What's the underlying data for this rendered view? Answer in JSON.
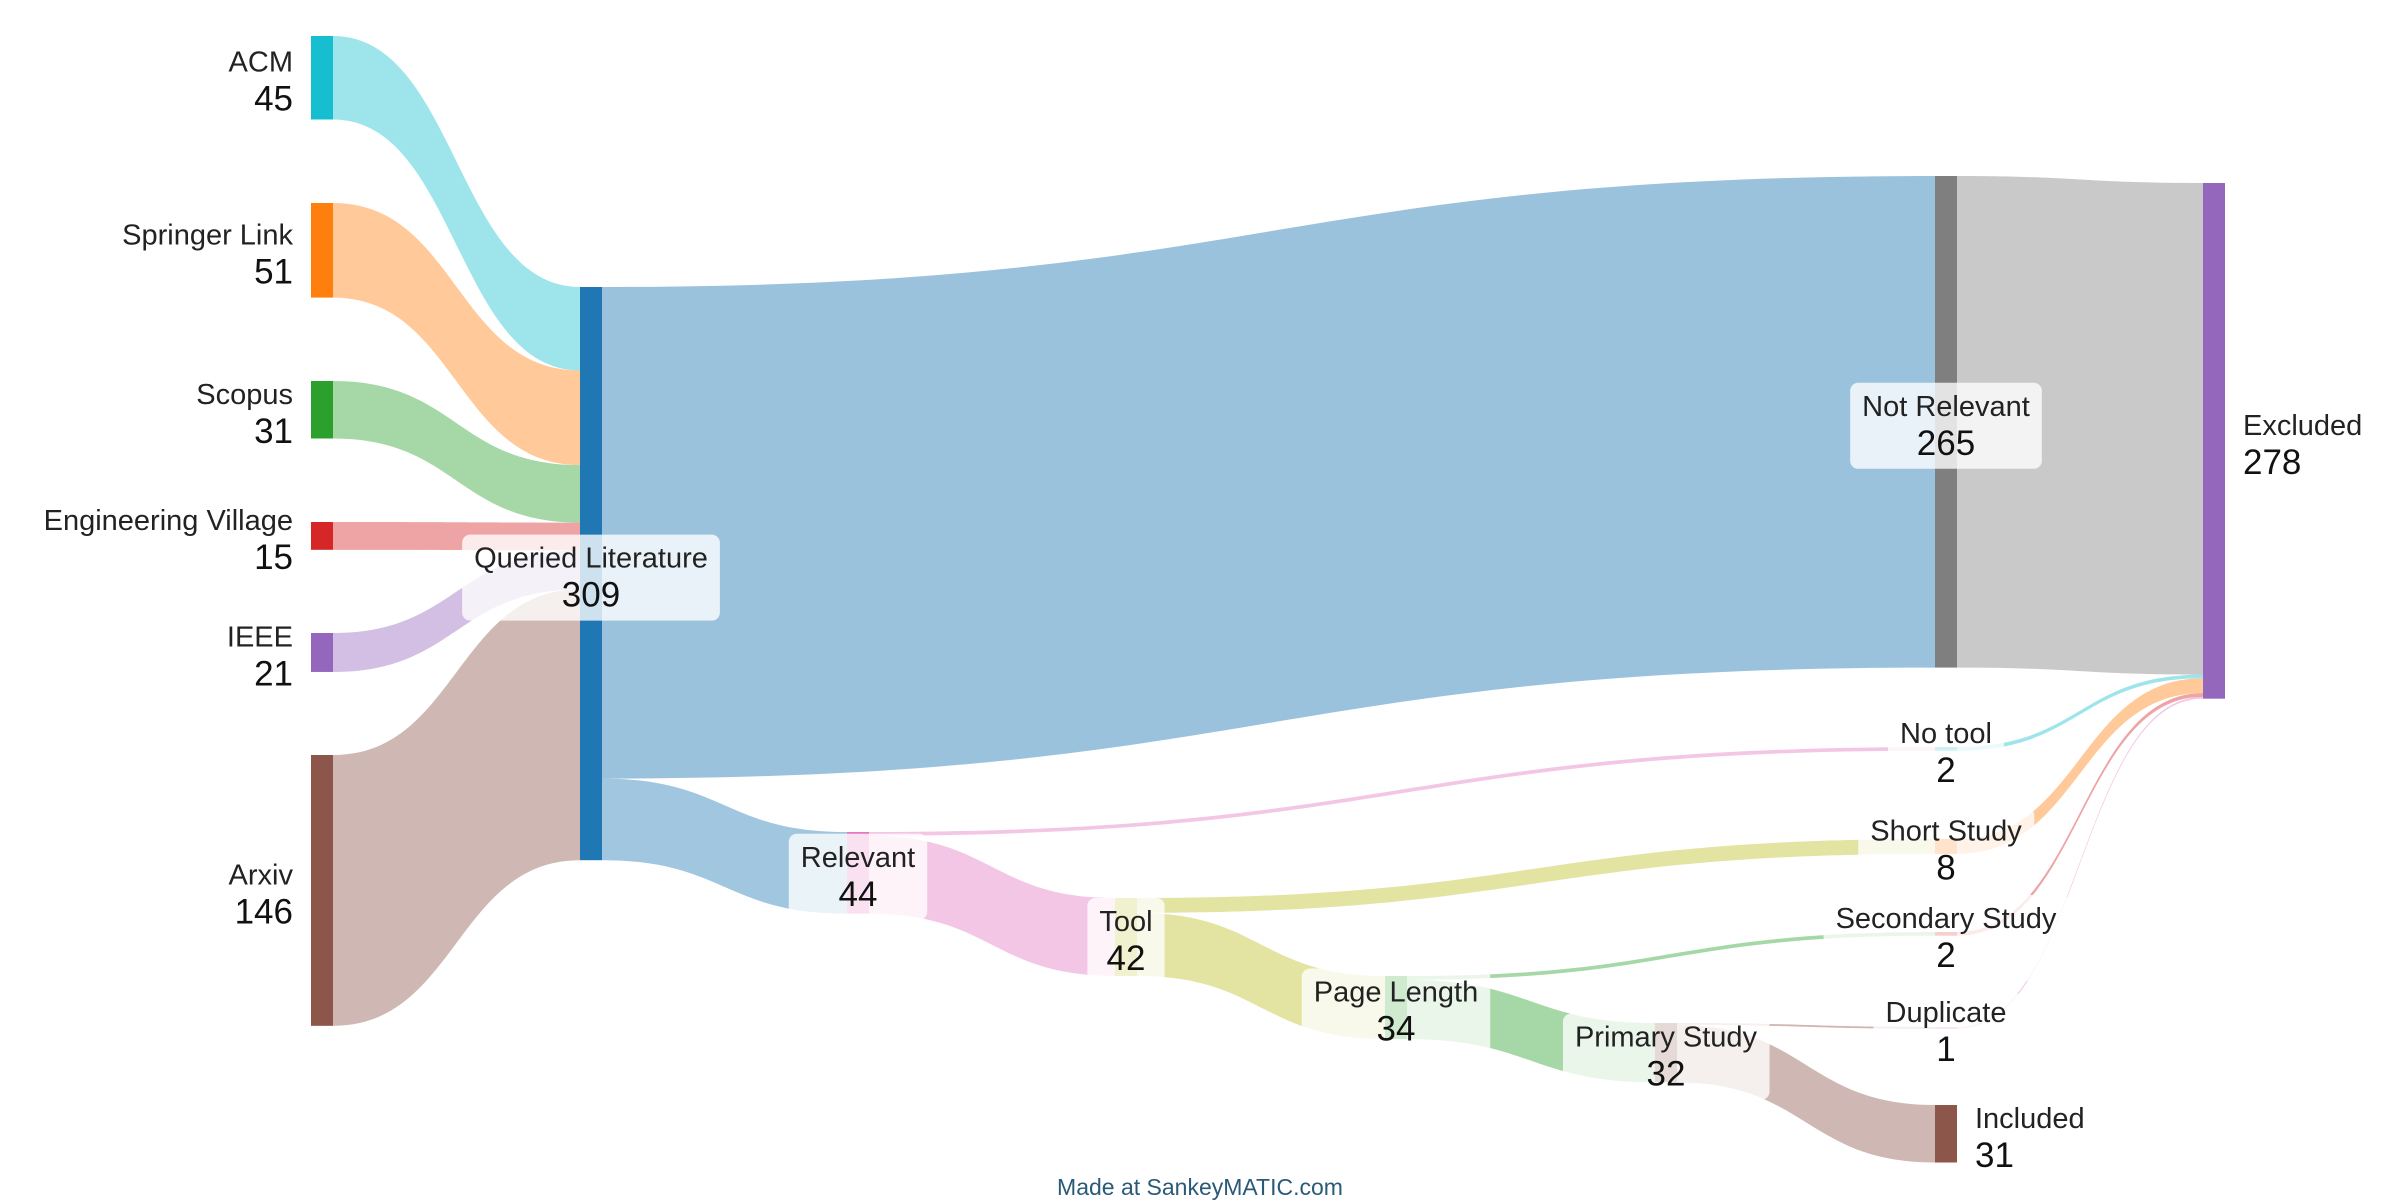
{
  "diagram": {
    "type": "sankey",
    "nodes": [
      {
        "id": "acm",
        "name": "ACM",
        "value": "45",
        "color": "#17becf"
      },
      {
        "id": "springer",
        "name": "Springer Link",
        "value": "51",
        "color": "#ff7f0e"
      },
      {
        "id": "scopus",
        "name": "Scopus",
        "value": "31",
        "color": "#2ca02c"
      },
      {
        "id": "ev",
        "name": "Engineering Village",
        "value": "15",
        "color": "#d62728"
      },
      {
        "id": "ieee",
        "name": "IEEE",
        "value": "21",
        "color": "#9467bd"
      },
      {
        "id": "arxiv",
        "name": "Arxiv",
        "value": "146",
        "color": "#8c564b"
      },
      {
        "id": "queried",
        "name": "Queried Literature",
        "value": "309",
        "color": "#1f77b4"
      },
      {
        "id": "notrel",
        "name": "Not Relevant",
        "value": "265",
        "color": "#7f7f7f"
      },
      {
        "id": "relevant",
        "name": "Relevant",
        "value": "44",
        "color": "#e377c2"
      },
      {
        "id": "tool",
        "name": "Tool",
        "value": "42",
        "color": "#bcbd22"
      },
      {
        "id": "notool",
        "name": "No tool",
        "value": "2",
        "color": "#17becf"
      },
      {
        "id": "short",
        "name": "Short Study",
        "value": "8",
        "color": "#ff7f0e"
      },
      {
        "id": "pagelen",
        "name": "Page Length",
        "value": "34",
        "color": "#2ca02c"
      },
      {
        "id": "secondary",
        "name": "Secondary Study",
        "value": "2",
        "color": "#d62728"
      },
      {
        "id": "primary",
        "name": "Primary Study",
        "value": "32",
        "color": "#8c564b"
      },
      {
        "id": "duplicate",
        "name": "Duplicate",
        "value": "1",
        "color": "#e377c2"
      },
      {
        "id": "included",
        "name": "Included",
        "value": "31",
        "color": "#8c564b"
      },
      {
        "id": "excluded",
        "name": "Excluded",
        "value": "278",
        "color": "#9467bd"
      }
    ],
    "flows": [
      {
        "from": "acm",
        "to": "queried",
        "value": 45
      },
      {
        "from": "springer",
        "to": "queried",
        "value": 51
      },
      {
        "from": "scopus",
        "to": "queried",
        "value": 31
      },
      {
        "from": "ev",
        "to": "queried",
        "value": 15
      },
      {
        "from": "ieee",
        "to": "queried",
        "value": 21
      },
      {
        "from": "arxiv",
        "to": "queried",
        "value": 146
      },
      {
        "from": "queried",
        "to": "notrel",
        "value": 265
      },
      {
        "from": "queried",
        "to": "relevant",
        "value": 44
      },
      {
        "from": "relevant",
        "to": "notool",
        "value": 2
      },
      {
        "from": "relevant",
        "to": "tool",
        "value": 42
      },
      {
        "from": "tool",
        "to": "short",
        "value": 8
      },
      {
        "from": "tool",
        "to": "pagelen",
        "value": 34
      },
      {
        "from": "pagelen",
        "to": "secondary",
        "value": 2
      },
      {
        "from": "pagelen",
        "to": "primary",
        "value": 32
      },
      {
        "from": "primary",
        "to": "duplicate",
        "value": 1
      },
      {
        "from": "primary",
        "to": "included",
        "value": 31
      },
      {
        "from": "notrel",
        "to": "excluded",
        "value": 265
      },
      {
        "from": "notool",
        "to": "excluded",
        "value": 2
      },
      {
        "from": "short",
        "to": "excluded",
        "value": 8
      },
      {
        "from": "secondary",
        "to": "excluded",
        "value": 2
      },
      {
        "from": "duplicate",
        "to": "excluded",
        "value": 1
      }
    ]
  },
  "footer": {
    "credit": "Made at SankeyMATIC.com"
  }
}
